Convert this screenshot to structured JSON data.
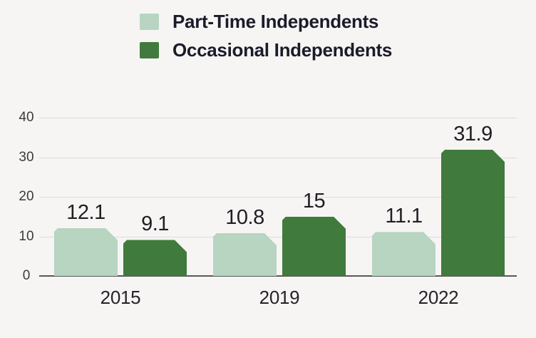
{
  "chart_data": {
    "type": "bar",
    "title": "",
    "xlabel": "",
    "ylabel": "",
    "categories": [
      "2015",
      "2019",
      "2022"
    ],
    "series": [
      {
        "name": "Part-Time Independents",
        "color": "#b7d5c1",
        "values": [
          12.1,
          10.8,
          11.1
        ]
      },
      {
        "name": "Occasional Independents",
        "color": "#417a3d",
        "values": [
          9.1,
          15,
          31.9
        ]
      }
    ],
    "ylim": [
      0,
      40
    ],
    "yticks": [
      0,
      10,
      20,
      30,
      40
    ],
    "grid": true,
    "legend_position": "top-left",
    "value_labels": true
  },
  "colors": {
    "background": "#f6f5f4",
    "gridline": "#dcdcdc",
    "baseline": "#58585a",
    "legend_text": "#1b1b29",
    "value_text": "#1f1f23",
    "xtick_text": "#242428",
    "ytick_text": "#3a3a3c"
  }
}
